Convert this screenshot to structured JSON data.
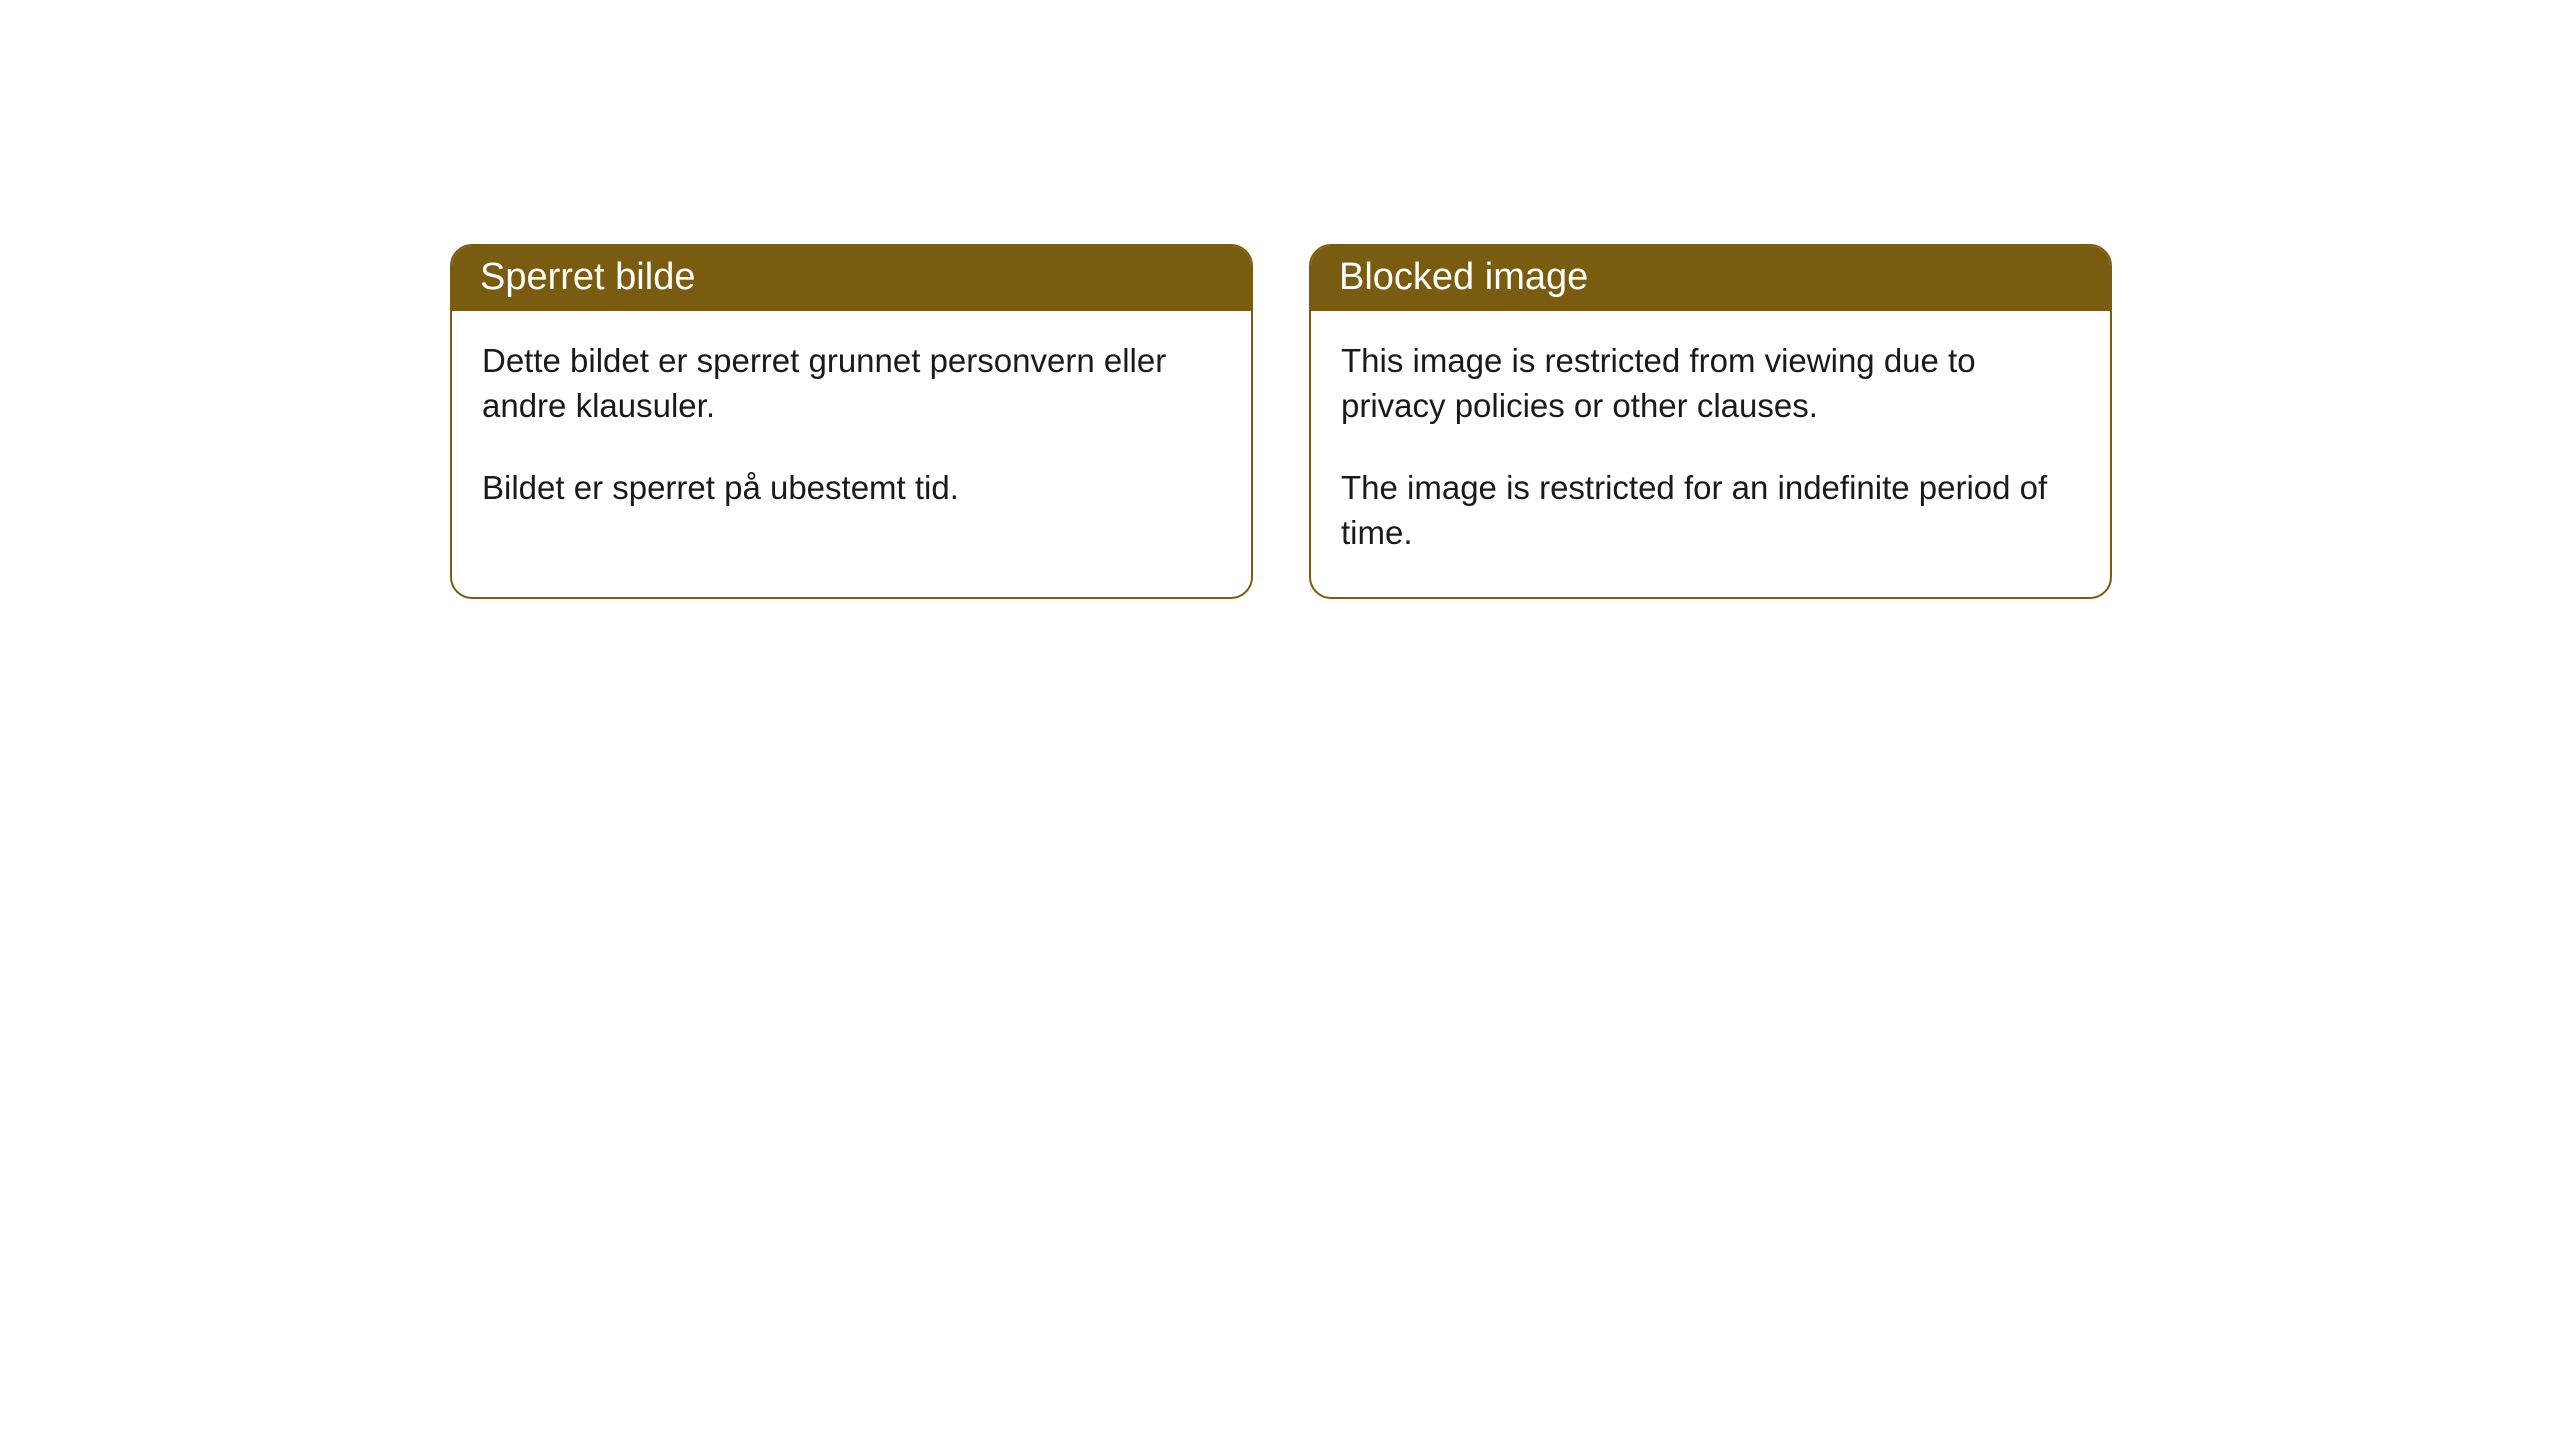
{
  "cards": [
    {
      "title": "Sperret bilde",
      "paragraph1": "Dette bildet er sperret grunnet personvern eller andre klausuler.",
      "paragraph2": "Bildet er sperret på ubestemt tid."
    },
    {
      "title": "Blocked image",
      "paragraph1": "This image is restricted from viewing due to privacy policies or other clauses.",
      "paragraph2": "The image is restricted for an indefinite period of time."
    }
  ],
  "style": {
    "header_background": "#7a5c10",
    "header_text_color": "#ffffff",
    "card_border_color": "#7a5c10",
    "card_background": "#ffffff",
    "body_text_color": "#1a1a1a",
    "card_border_radius": 22,
    "header_fontsize": 38,
    "body_fontsize": 33
  }
}
